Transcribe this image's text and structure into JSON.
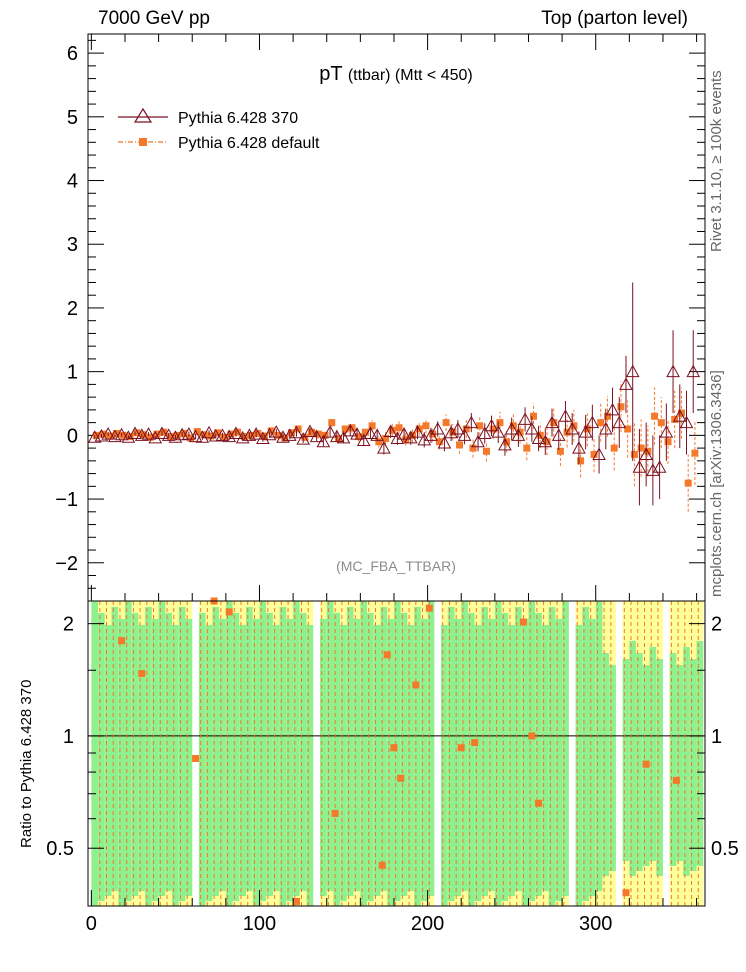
{
  "header": {
    "left": "7000 GeV pp",
    "right": "Top (parton level)"
  },
  "side_labels": {
    "rivet": "Rivet 3.1.10, ≥ 100k events",
    "mcplots": "mcplots.cern.ch [arXiv:1306.3436]"
  },
  "chart_data": [
    {
      "type": "scatter",
      "title_main": "pT",
      "title_sub": "(ttbar) (Mtt < 450)",
      "annotation": "(MC_FBA_TTBAR)",
      "ylim": [
        -2.6,
        6.3
      ],
      "xlim": [
        -2,
        365
      ],
      "yticks": [
        "−2",
        "−1",
        "0",
        "1",
        "2",
        "3",
        "4",
        "5",
        "6"
      ],
      "ytick_values": [
        -2,
        -1,
        0,
        1,
        2,
        3,
        4,
        5,
        6
      ],
      "legend_position": "top-left",
      "legend": [
        "Pythia 6.428 370",
        "Pythia 6.428 default"
      ],
      "colors": {
        "ref": "#7a1020",
        "mc": "#f4792a"
      },
      "series": [
        {
          "name": "Pythia 6.428 370",
          "marker": "open-triangle",
          "x": [
            2,
            6,
            10,
            14,
            18,
            22,
            26,
            30,
            34,
            38,
            42,
            46,
            50,
            54,
            58,
            62,
            66,
            70,
            74,
            78,
            82,
            86,
            90,
            94,
            98,
            102,
            106,
            110,
            114,
            118,
            122,
            126,
            130,
            134,
            138,
            142,
            146,
            150,
            154,
            158,
            162,
            166,
            170,
            174,
            178,
            182,
            186,
            190,
            194,
            198,
            202,
            206,
            210,
            214,
            218,
            222,
            226,
            230,
            234,
            238,
            242,
            246,
            250,
            254,
            258,
            262,
            266,
            270,
            274,
            278,
            282,
            286,
            290,
            294,
            298,
            302,
            306,
            310,
            314,
            318,
            322,
            326,
            330,
            334,
            338,
            342,
            346,
            350,
            354,
            358
          ],
          "y": [
            -0.03,
            -0.01,
            0.02,
            -0.02,
            0.01,
            -0.03,
            0.03,
            0.0,
            0.02,
            -0.04,
            0.03,
            0.0,
            -0.03,
            0.01,
            0.02,
            -0.02,
            -0.03,
            0.04,
            -0.01,
            0.0,
            -0.02,
            0.03,
            -0.04,
            0.0,
            0.02,
            -0.05,
            0.01,
            0.05,
            -0.03,
            0.0,
            0.04,
            -0.06,
            0.06,
            -0.02,
            -0.1,
            0.05,
            -0.02,
            -0.04,
            0.07,
            0.02,
            -0.08,
            0.03,
            0.0,
            -0.2,
            0.06,
            -0.05,
            0.02,
            -0.04,
            0.05,
            -0.07,
            0.0,
            0.1,
            -0.12,
            0.04,
            0.1,
            0.0,
            0.2,
            -0.1,
            0.03,
            0.15,
            0.05,
            -0.15,
            0.1,
            0.0,
            0.25,
            0.1,
            -0.05,
            -0.1,
            0.2,
            0.0,
            0.3,
            0.1,
            -0.2,
            0.05,
            0.2,
            -0.3,
            0.1,
            0.4,
            0.2,
            0.8,
            1.0,
            -0.5,
            -0.3,
            -0.55,
            -0.5,
            0.05,
            1.0,
            0.3,
            0.2,
            1.0
          ],
          "err": [
            0.03,
            0.03,
            0.03,
            0.03,
            0.03,
            0.03,
            0.03,
            0.03,
            0.03,
            0.03,
            0.04,
            0.04,
            0.04,
            0.04,
            0.04,
            0.04,
            0.04,
            0.04,
            0.04,
            0.04,
            0.05,
            0.05,
            0.05,
            0.05,
            0.05,
            0.05,
            0.05,
            0.05,
            0.06,
            0.06,
            0.06,
            0.06,
            0.06,
            0.07,
            0.07,
            0.07,
            0.07,
            0.08,
            0.08,
            0.08,
            0.08,
            0.09,
            0.09,
            0.1,
            0.1,
            0.1,
            0.1,
            0.11,
            0.11,
            0.12,
            0.12,
            0.12,
            0.13,
            0.13,
            0.14,
            0.14,
            0.15,
            0.15,
            0.16,
            0.16,
            0.17,
            0.17,
            0.18,
            0.18,
            0.19,
            0.2,
            0.2,
            0.21,
            0.22,
            0.23,
            0.24,
            0.25,
            0.26,
            0.27,
            0.28,
            0.3,
            0.32,
            0.35,
            0.4,
            0.45,
            1.4,
            0.6,
            0.5,
            0.55,
            0.5,
            0.45,
            0.65,
            0.5,
            0.5,
            0.65
          ]
        },
        {
          "name": "Pythia 6.428 default",
          "marker": "filled-square",
          "x": [
            3,
            7,
            11,
            15,
            19,
            23,
            27,
            31,
            35,
            39,
            43,
            47,
            51,
            55,
            59,
            63,
            67,
            71,
            75,
            79,
            83,
            87,
            91,
            95,
            99,
            103,
            107,
            111,
            115,
            119,
            123,
            127,
            131,
            135,
            139,
            143,
            147,
            151,
            155,
            159,
            163,
            167,
            171,
            175,
            179,
            183,
            187,
            191,
            195,
            199,
            203,
            207,
            211,
            215,
            219,
            223,
            227,
            231,
            235,
            239,
            243,
            247,
            251,
            255,
            259,
            263,
            267,
            271,
            275,
            279,
            283,
            287,
            291,
            295,
            299,
            303,
            307,
            311,
            315,
            319,
            323,
            327,
            331,
            335,
            339,
            343,
            347,
            351,
            355,
            359
          ],
          "y": [
            0.0,
            0.02,
            -0.01,
            0.03,
            0.0,
            -0.02,
            0.04,
            0.01,
            -0.03,
            0.02,
            0.05,
            -0.02,
            0.0,
            0.03,
            -0.04,
            0.06,
            0.01,
            -0.01,
            0.04,
            -0.03,
            0.02,
            0.05,
            -0.02,
            0.0,
            0.03,
            -0.01,
            0.07,
            0.0,
            -0.04,
            0.04,
            0.1,
            -0.03,
            0.05,
            0.02,
            0.0,
            0.2,
            -0.05,
            0.1,
            0.12,
            -0.02,
            0.05,
            0.15,
            -0.1,
            -0.05,
            0.08,
            0.12,
            -0.06,
            0.0,
            0.1,
            0.15,
            0.02,
            -0.1,
            0.2,
            0.05,
            -0.15,
            0.1,
            -0.2,
            0.15,
            -0.25,
            0.1,
            0.2,
            -0.1,
            0.15,
            0.05,
            -0.2,
            0.3,
            0.0,
            -0.1,
            0.2,
            -0.25,
            0.05,
            0.15,
            -0.4,
            0.1,
            -0.3,
            0.2,
            0.3,
            -0.2,
            0.45,
            0.1,
            -0.3,
            -0.2,
            -0.25,
            0.3,
            0.2,
            -0.1,
            0.25,
            0.35,
            -0.75,
            -0.28
          ],
          "err": [
            0.03,
            0.03,
            0.03,
            0.03,
            0.03,
            0.03,
            0.03,
            0.03,
            0.03,
            0.03,
            0.04,
            0.04,
            0.04,
            0.04,
            0.04,
            0.04,
            0.04,
            0.04,
            0.04,
            0.04,
            0.05,
            0.05,
            0.05,
            0.05,
            0.05,
            0.05,
            0.05,
            0.05,
            0.06,
            0.06,
            0.06,
            0.06,
            0.06,
            0.07,
            0.07,
            0.07,
            0.07,
            0.08,
            0.08,
            0.08,
            0.08,
            0.09,
            0.09,
            0.1,
            0.1,
            0.1,
            0.1,
            0.11,
            0.11,
            0.12,
            0.12,
            0.12,
            0.13,
            0.13,
            0.14,
            0.14,
            0.15,
            0.15,
            0.16,
            0.16,
            0.17,
            0.17,
            0.18,
            0.18,
            0.19,
            0.2,
            0.2,
            0.21,
            0.22,
            0.23,
            0.24,
            0.25,
            0.26,
            0.27,
            0.28,
            0.3,
            0.32,
            0.35,
            0.4,
            0.45,
            0.5,
            0.45,
            0.4,
            0.45,
            0.4,
            0.35,
            0.45,
            0.4,
            0.45,
            0.5
          ]
        }
      ]
    },
    {
      "type": "scatter",
      "ylabel": "Ratio to Pythia 6.428 370",
      "ylim": [
        0.35,
        2.3
      ],
      "xlim": [
        -2,
        365
      ],
      "yticks": [
        "0.5",
        "1",
        "2"
      ],
      "ytick_values": [
        0.5,
        1,
        2
      ],
      "xticks": [
        "0",
        "100",
        "200",
        "300"
      ],
      "xtick_values": [
        0,
        100,
        200,
        300
      ],
      "reference_line": 1,
      "band_colors": {
        "inner": "#8ff08f",
        "outer": "#ffff99"
      },
      "gaps": [
        [
          58,
          62
        ],
        [
          130,
          135
        ],
        [
          202,
          206
        ],
        [
          282,
          287
        ],
        [
          312,
          316
        ],
        [
          340,
          344
        ]
      ],
      "ratio_points": [
        {
          "x": 18,
          "y": 1.8
        },
        {
          "x": 30,
          "y": 1.47
        },
        {
          "x": 62,
          "y": 0.87
        },
        {
          "x": 73,
          "y": 2.3
        },
        {
          "x": 82,
          "y": 2.15
        },
        {
          "x": 122,
          "y": 0.36
        },
        {
          "x": 145,
          "y": 0.62
        },
        {
          "x": 173,
          "y": 0.45
        },
        {
          "x": 176,
          "y": 1.65
        },
        {
          "x": 180,
          "y": 0.93
        },
        {
          "x": 184,
          "y": 0.77
        },
        {
          "x": 193,
          "y": 1.37
        },
        {
          "x": 201,
          "y": 2.2
        },
        {
          "x": 220,
          "y": 0.93
        },
        {
          "x": 228,
          "y": 0.96
        },
        {
          "x": 257,
          "y": 2.02
        },
        {
          "x": 262,
          "y": 1.0
        },
        {
          "x": 266,
          "y": 0.66
        },
        {
          "x": 318,
          "y": 0.38
        },
        {
          "x": 330,
          "y": 0.84
        },
        {
          "x": 348,
          "y": 0.76
        }
      ]
    }
  ]
}
